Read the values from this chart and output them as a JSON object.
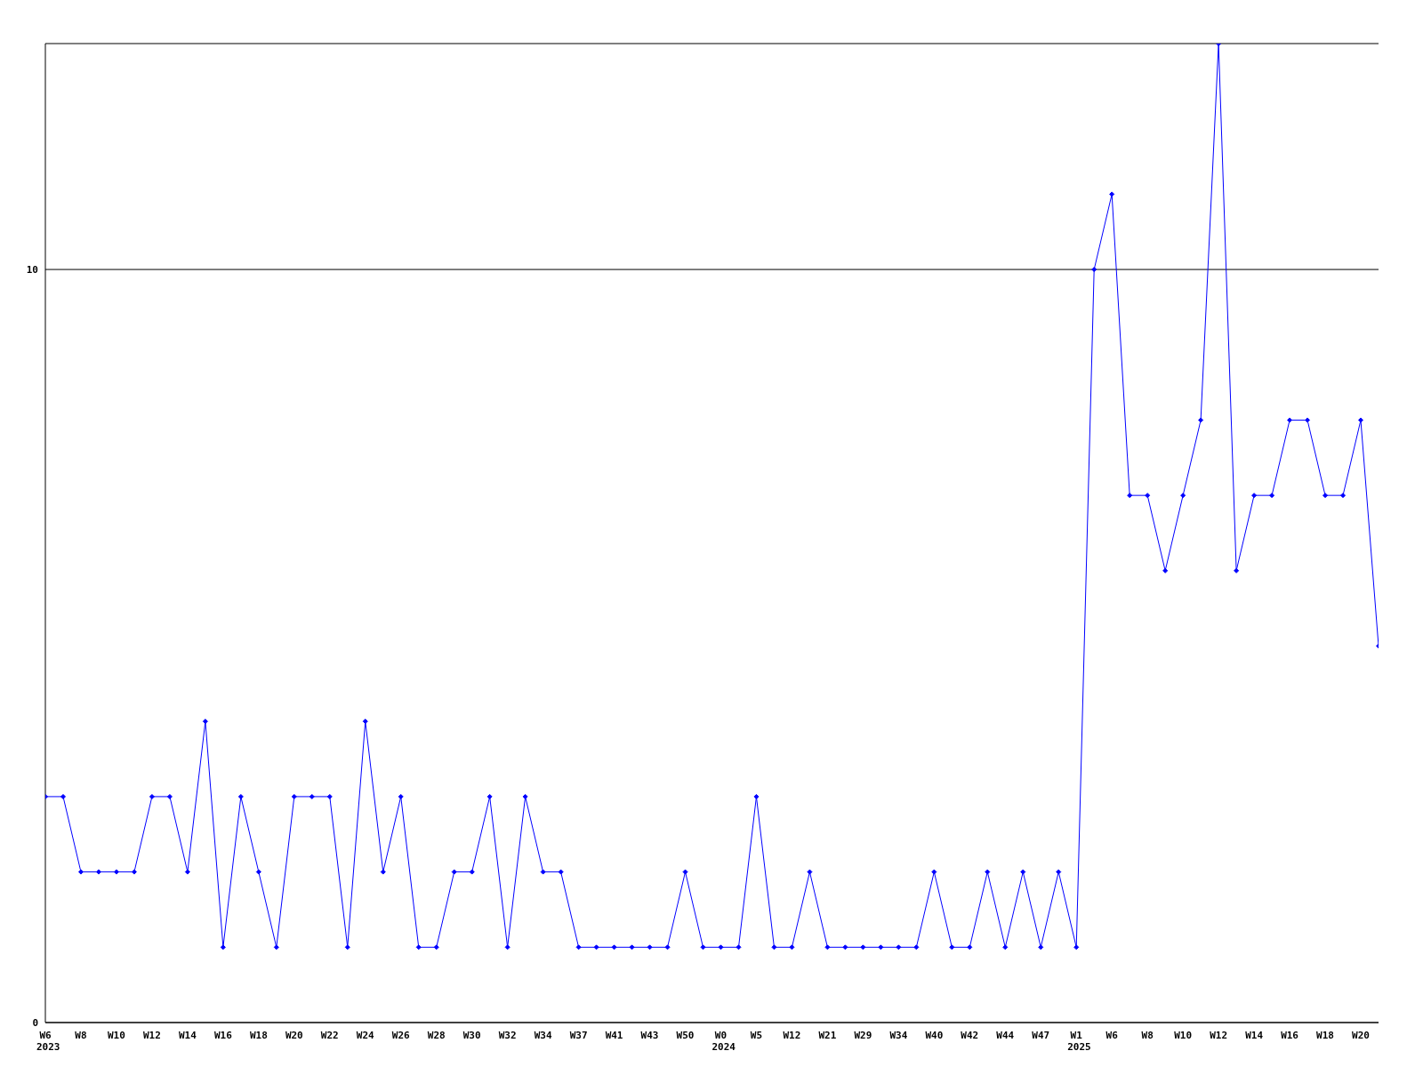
{
  "chart_data": {
    "type": "line",
    "categories": [
      "W6\n2023",
      null,
      "W8",
      null,
      "W10",
      null,
      "W12",
      null,
      "W14",
      null,
      "W16",
      null,
      "W18",
      null,
      "W20",
      null,
      "W22",
      null,
      "W24",
      null,
      "W26",
      null,
      "W28",
      null,
      "W30",
      null,
      "W32",
      null,
      "W34",
      null,
      "W37",
      null,
      "W41",
      null,
      "W43",
      null,
      "W50",
      null,
      "W0\n2024",
      null,
      "W5",
      null,
      "W12",
      null,
      "W21",
      null,
      "W29",
      null,
      "W34",
      null,
      "W40",
      null,
      "W42",
      null,
      "W44",
      null,
      "W47",
      null,
      "W1\n2025",
      null,
      "W6",
      null,
      "W8",
      null,
      "W10",
      null,
      "W12",
      null,
      "W14",
      null,
      "W16",
      null,
      "W18",
      null,
      "W20",
      null
    ],
    "series": [
      {
        "color": "#0000ff",
        "values": [
          3,
          3,
          2,
          2,
          2,
          2,
          3,
          3,
          2,
          4,
          1,
          3,
          2,
          1,
          3,
          3,
          3,
          1,
          4,
          2,
          3,
          1,
          1,
          2,
          2,
          3,
          1,
          3,
          2,
          2,
          1,
          1,
          1,
          1,
          1,
          1,
          2,
          1,
          1,
          1,
          3,
          1,
          1,
          2,
          1,
          1,
          1,
          1,
          1,
          1,
          2,
          1,
          1,
          2,
          1,
          2,
          1,
          2,
          1,
          10,
          11,
          7,
          7,
          6,
          7,
          8,
          13,
          6,
          7,
          7,
          8,
          8,
          7,
          7,
          8,
          5
        ]
      }
    ],
    "ylim": [
      0,
      13
    ],
    "yticks": [
      0,
      10
    ],
    "grid": "y",
    "legend": false,
    "marker": "diamond",
    "line_style": "solid"
  }
}
